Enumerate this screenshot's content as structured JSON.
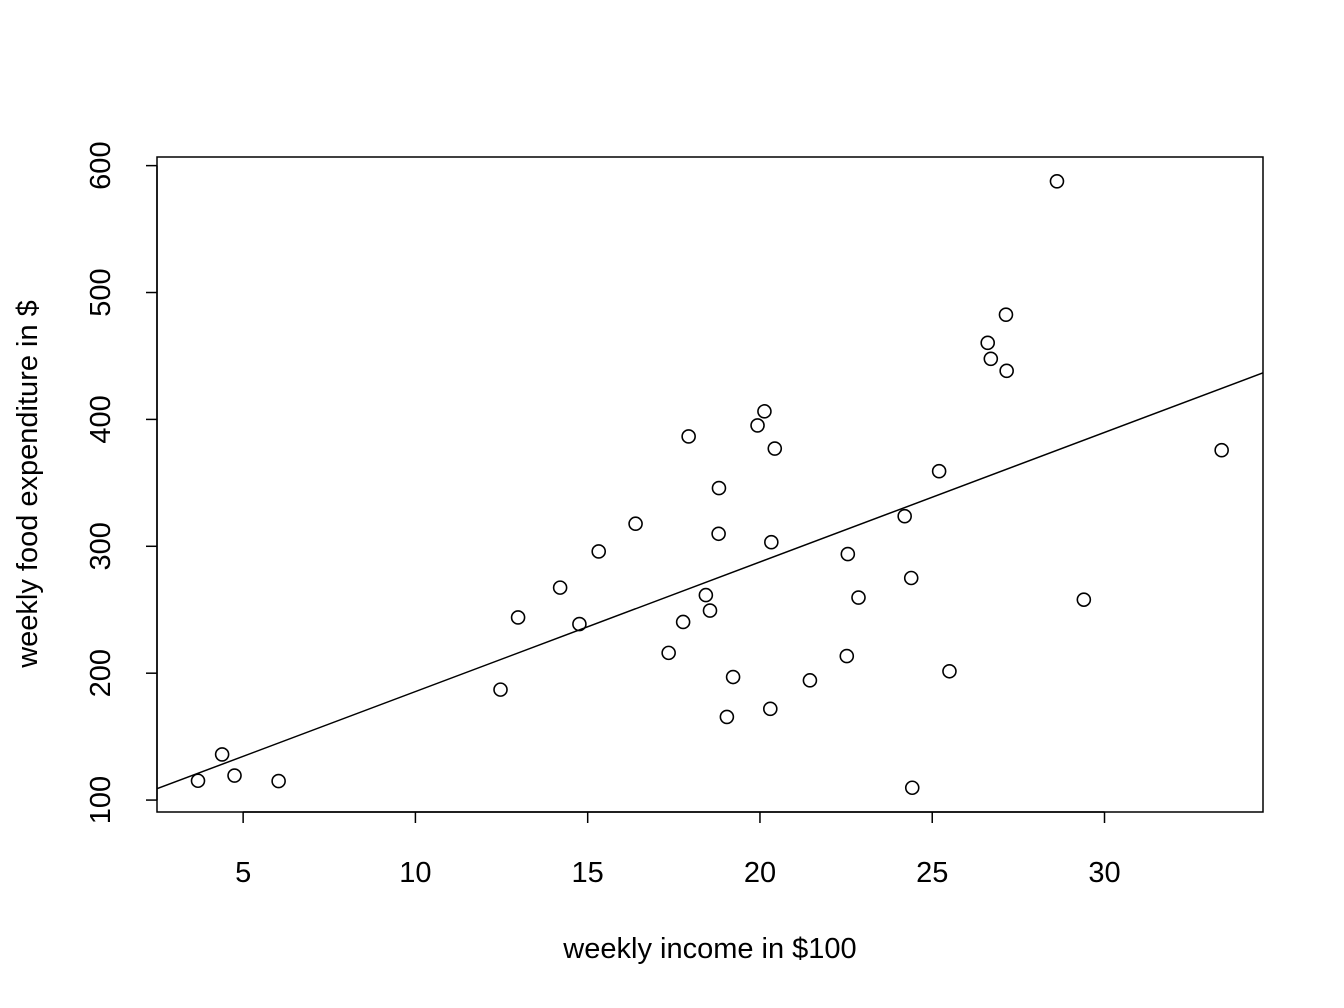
{
  "chart_data": {
    "type": "scatter",
    "xlabel": "weekly income in $100",
    "ylabel": "weekly food expenditure in $",
    "x": [
      3.69,
      4.39,
      4.75,
      6.03,
      12.47,
      12.98,
      14.2,
      14.76,
      15.32,
      16.39,
      17.35,
      17.77,
      17.93,
      18.43,
      18.55,
      18.8,
      18.81,
      19.04,
      19.22,
      19.93,
      20.13,
      20.3,
      20.33,
      20.43,
      21.45,
      22.52,
      22.55,
      22.86,
      24.2,
      24.39,
      24.42,
      25.2,
      25.5,
      26.61,
      26.7,
      27.14,
      27.16,
      28.62,
      29.4,
      33.4
    ],
    "values": [
      115.22,
      135.98,
      119.34,
      114.96,
      187.05,
      243.92,
      267.43,
      238.71,
      295.94,
      317.78,
      216.0,
      240.35,
      386.57,
      261.53,
      249.34,
      309.87,
      345.89,
      165.54,
      196.98,
      395.26,
      406.34,
      171.92,
      303.23,
      377.04,
      194.35,
      213.48,
      293.87,
      259.61,
      323.71,
      275.02,
      109.71,
      359.19,
      201.51,
      460.36,
      447.76,
      482.55,
      438.29,
      587.66,
      257.95,
      375.73
    ],
    "color": "#000000",
    "trend_line": {
      "intercept": 83.42,
      "slope": 10.21
    },
    "xlim": [
      2.5,
      34.6
    ],
    "ylim": [
      90.6,
      606.8
    ],
    "xticks": [
      5,
      10,
      15,
      20,
      25,
      30
    ],
    "yticks": [
      100,
      200,
      300,
      400,
      500,
      600
    ]
  }
}
